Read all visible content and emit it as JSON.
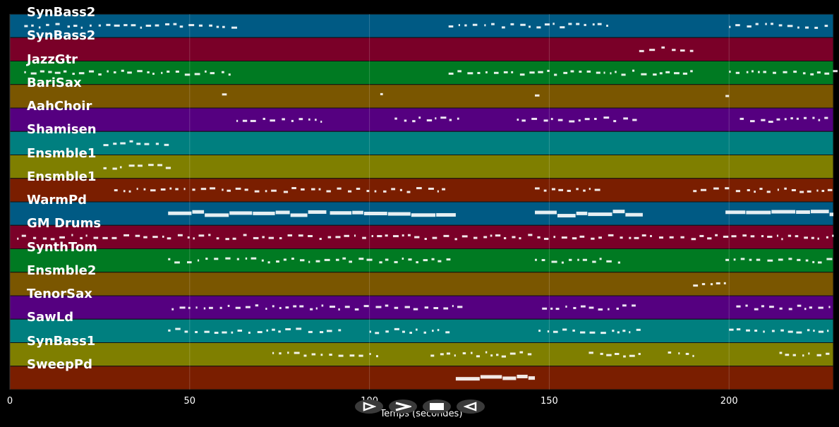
{
  "tracks": [
    {
      "name": "SynBass2",
      "color": "#005a84"
    },
    {
      "name": "SynBass2",
      "color": "#7a0028"
    },
    {
      "name": "JazzGtr",
      "color": "#007a22"
    },
    {
      "name": "BariSax",
      "color": "#7a5600"
    },
    {
      "name": "AahChoir",
      "color": "#550080"
    },
    {
      "name": "Shamisen",
      "color": "#007f7f"
    },
    {
      "name": "Ensmble1",
      "color": "#7f7f00"
    },
    {
      "name": "Ensmble1",
      "color": "#7a1e00"
    },
    {
      "name": "WarmPd",
      "color": "#005a84"
    },
    {
      "name": "GM Drums",
      "color": "#7a0028"
    },
    {
      "name": "SynthTom",
      "color": "#007a22"
    },
    {
      "name": "Ensmble2",
      "color": "#7a5600"
    },
    {
      "name": "TenorSax",
      "color": "#550080"
    },
    {
      "name": "SawLd",
      "color": "#007f7f"
    },
    {
      "name": "SynBass1",
      "color": "#7f7f00"
    },
    {
      "name": "SweepPd",
      "color": "#7a1e00"
    }
  ],
  "axis": {
    "xlabel": "Temps (secondes)",
    "xlim": [
      0,
      229
    ],
    "ticks": [
      {
        "value": 0,
        "label": "0"
      },
      {
        "value": 50,
        "label": "50"
      },
      {
        "value": 100,
        "label": "100"
      },
      {
        "value": 150,
        "label": "150"
      },
      {
        "value": 200,
        "label": "200"
      }
    ]
  },
  "controls": {
    "play_icon": "play-outline-icon",
    "forward_icon": "forward-chevron-icon",
    "stop_icon": "stop-icon",
    "rewind_icon": "rewind-outline-icon"
  }
}
